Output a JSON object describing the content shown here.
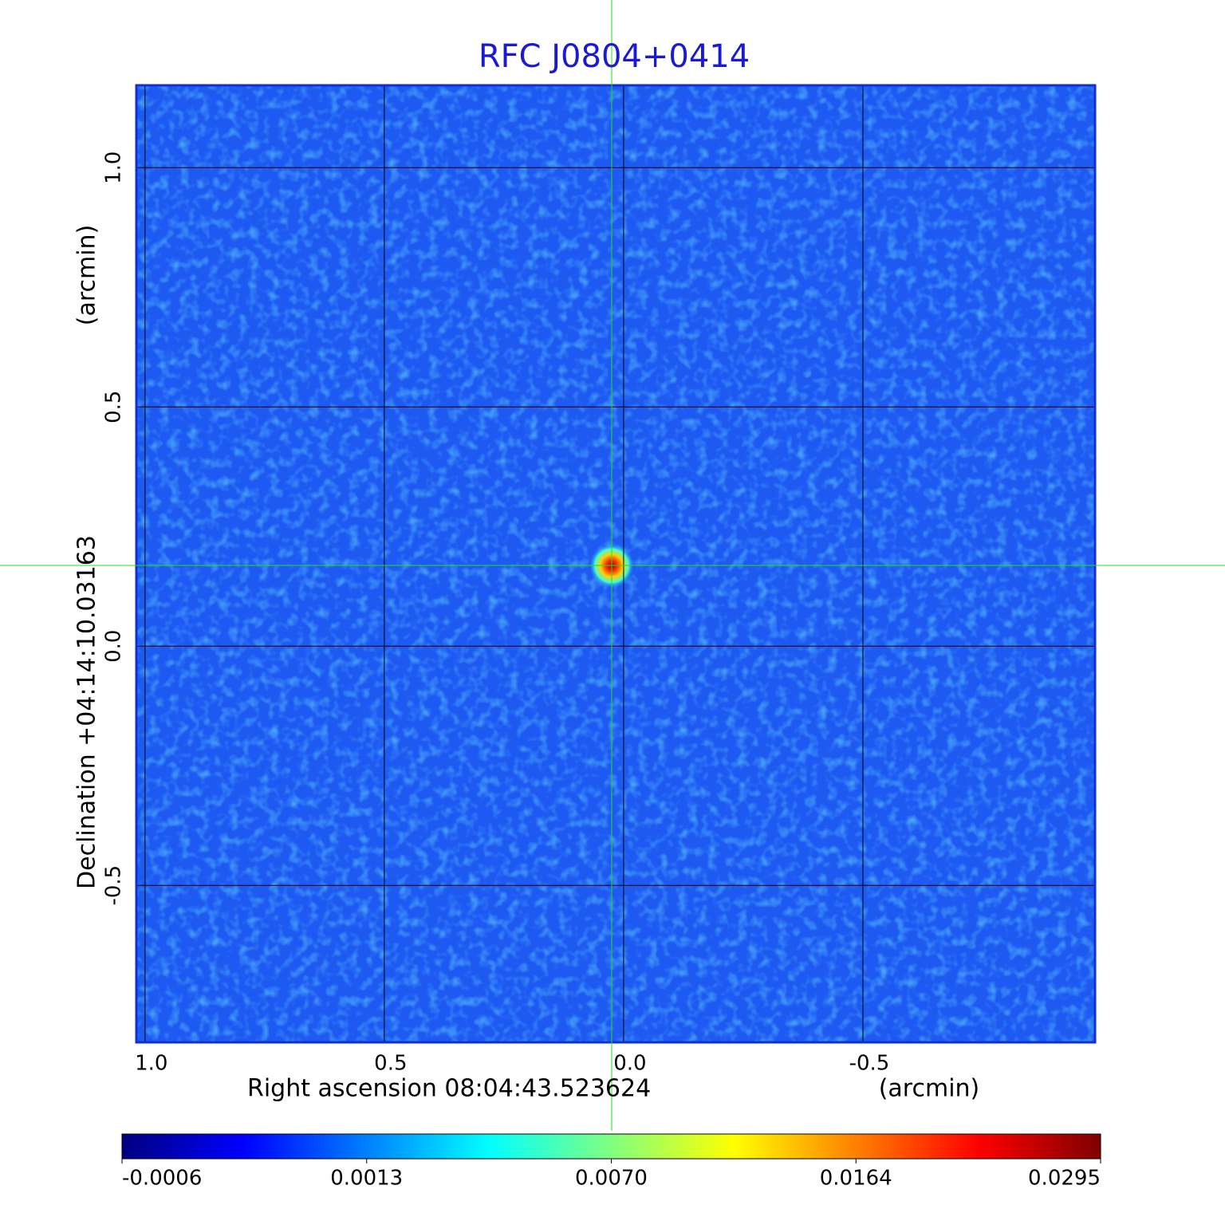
{
  "chart_data": {
    "type": "image",
    "title": "RFC J0804+0414",
    "xlabel": "Right ascension  08:04:43.523624",
    "xunit": "(arcmin)",
    "ylabel": "Declination  +04:14:10.03163",
    "yunit": "(arcmin)",
    "xlim": [
      1.018,
      -0.985
    ],
    "ylim": [
      -0.828,
      1.172
    ],
    "xticks": [
      {
        "value": 1.0,
        "label": "1.0"
      },
      0.5,
      {
        "value": 0.0,
        "label": "0.0"
      },
      -0.5
    ],
    "yticks": [
      {
        "value": 1.0,
        "label": "1.0"
      },
      0.5,
      {
        "value": 0.0,
        "label": "0.0"
      },
      -0.5
    ],
    "grid": true,
    "peak": {
      "x": 0.025,
      "y": 0.168,
      "value": 0.0295
    },
    "colorbar": {
      "ticks": [
        -0.0006,
        0.0013,
        {
          "value": 0.007,
          "label": "0.0070"
        },
        0.0164,
        0.0295
      ],
      "colormap": [
        "#000080",
        "#0000ff",
        "#0080ff",
        "#00ffff",
        "#80ff80",
        "#ffff00",
        "#ff8000",
        "#ff0000",
        "#800000"
      ]
    }
  }
}
